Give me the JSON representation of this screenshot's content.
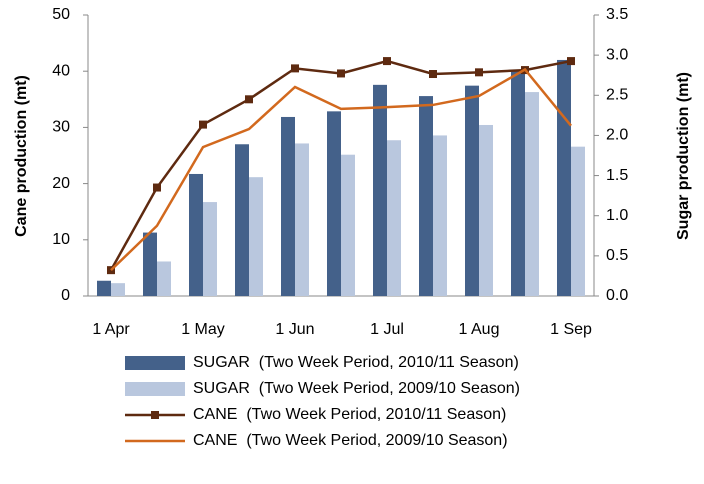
{
  "chart_data": {
    "type": "bar-line",
    "y_label": "Cane production (mt)",
    "y2_label": "Sugar production (mt)",
    "categories": [
      "1 Apr",
      null,
      "1 May",
      null,
      "1 Jun",
      null,
      "1 Jul",
      null,
      "1 Aug",
      null,
      "1 Sep"
    ],
    "ylim": [
      0,
      50
    ],
    "yticks": [
      0,
      10,
      20,
      30,
      40,
      50
    ],
    "y2lim": [
      0,
      3.5
    ],
    "y2ticks": [
      {
        "value": 0,
        "label": "0.0"
      },
      0.5,
      {
        "value": 1,
        "label": "1.0"
      },
      1.5,
      {
        "value": 2,
        "label": "2.0"
      },
      2.5,
      {
        "value": 3,
        "label": "3.0"
      },
      3.5
    ],
    "legend": "bottom",
    "series": [
      {
        "name": "SUGAR  (Two Week Period, 2010/11 Season)",
        "type": "bar",
        "axis": "y2",
        "color": "#44618a",
        "values": [
          0.19,
          0.79,
          1.52,
          1.89,
          2.23,
          2.3,
          2.63,
          2.49,
          2.62,
          2.8,
          2.94
        ]
      },
      {
        "name": "SUGAR  (Two Week Period, 2009/10 Season)",
        "type": "bar",
        "axis": "y2",
        "color": "#b9c7de",
        "values": [
          0.16,
          0.43,
          1.17,
          1.48,
          1.9,
          1.76,
          1.94,
          2.0,
          2.13,
          2.54,
          1.86
        ]
      },
      {
        "name": "CANE  (Two Week Period, 2010/11 Season)",
        "type": "line",
        "color": "#5e2a10",
        "marker": "square",
        "values": [
          4.6,
          19.3,
          30.5,
          35,
          40.5,
          39.6,
          41.8,
          39.5,
          39.8,
          40.2,
          41.8
        ]
      },
      {
        "name": "CANE  (Two Week Period, 2009/10 Season)",
        "type": "line",
        "color": "#d2691e",
        "values": [
          4.6,
          12.5,
          26.5,
          29.7,
          37.2,
          33.3,
          33.6,
          34,
          35.6,
          40.3,
          30.3
        ]
      }
    ]
  }
}
